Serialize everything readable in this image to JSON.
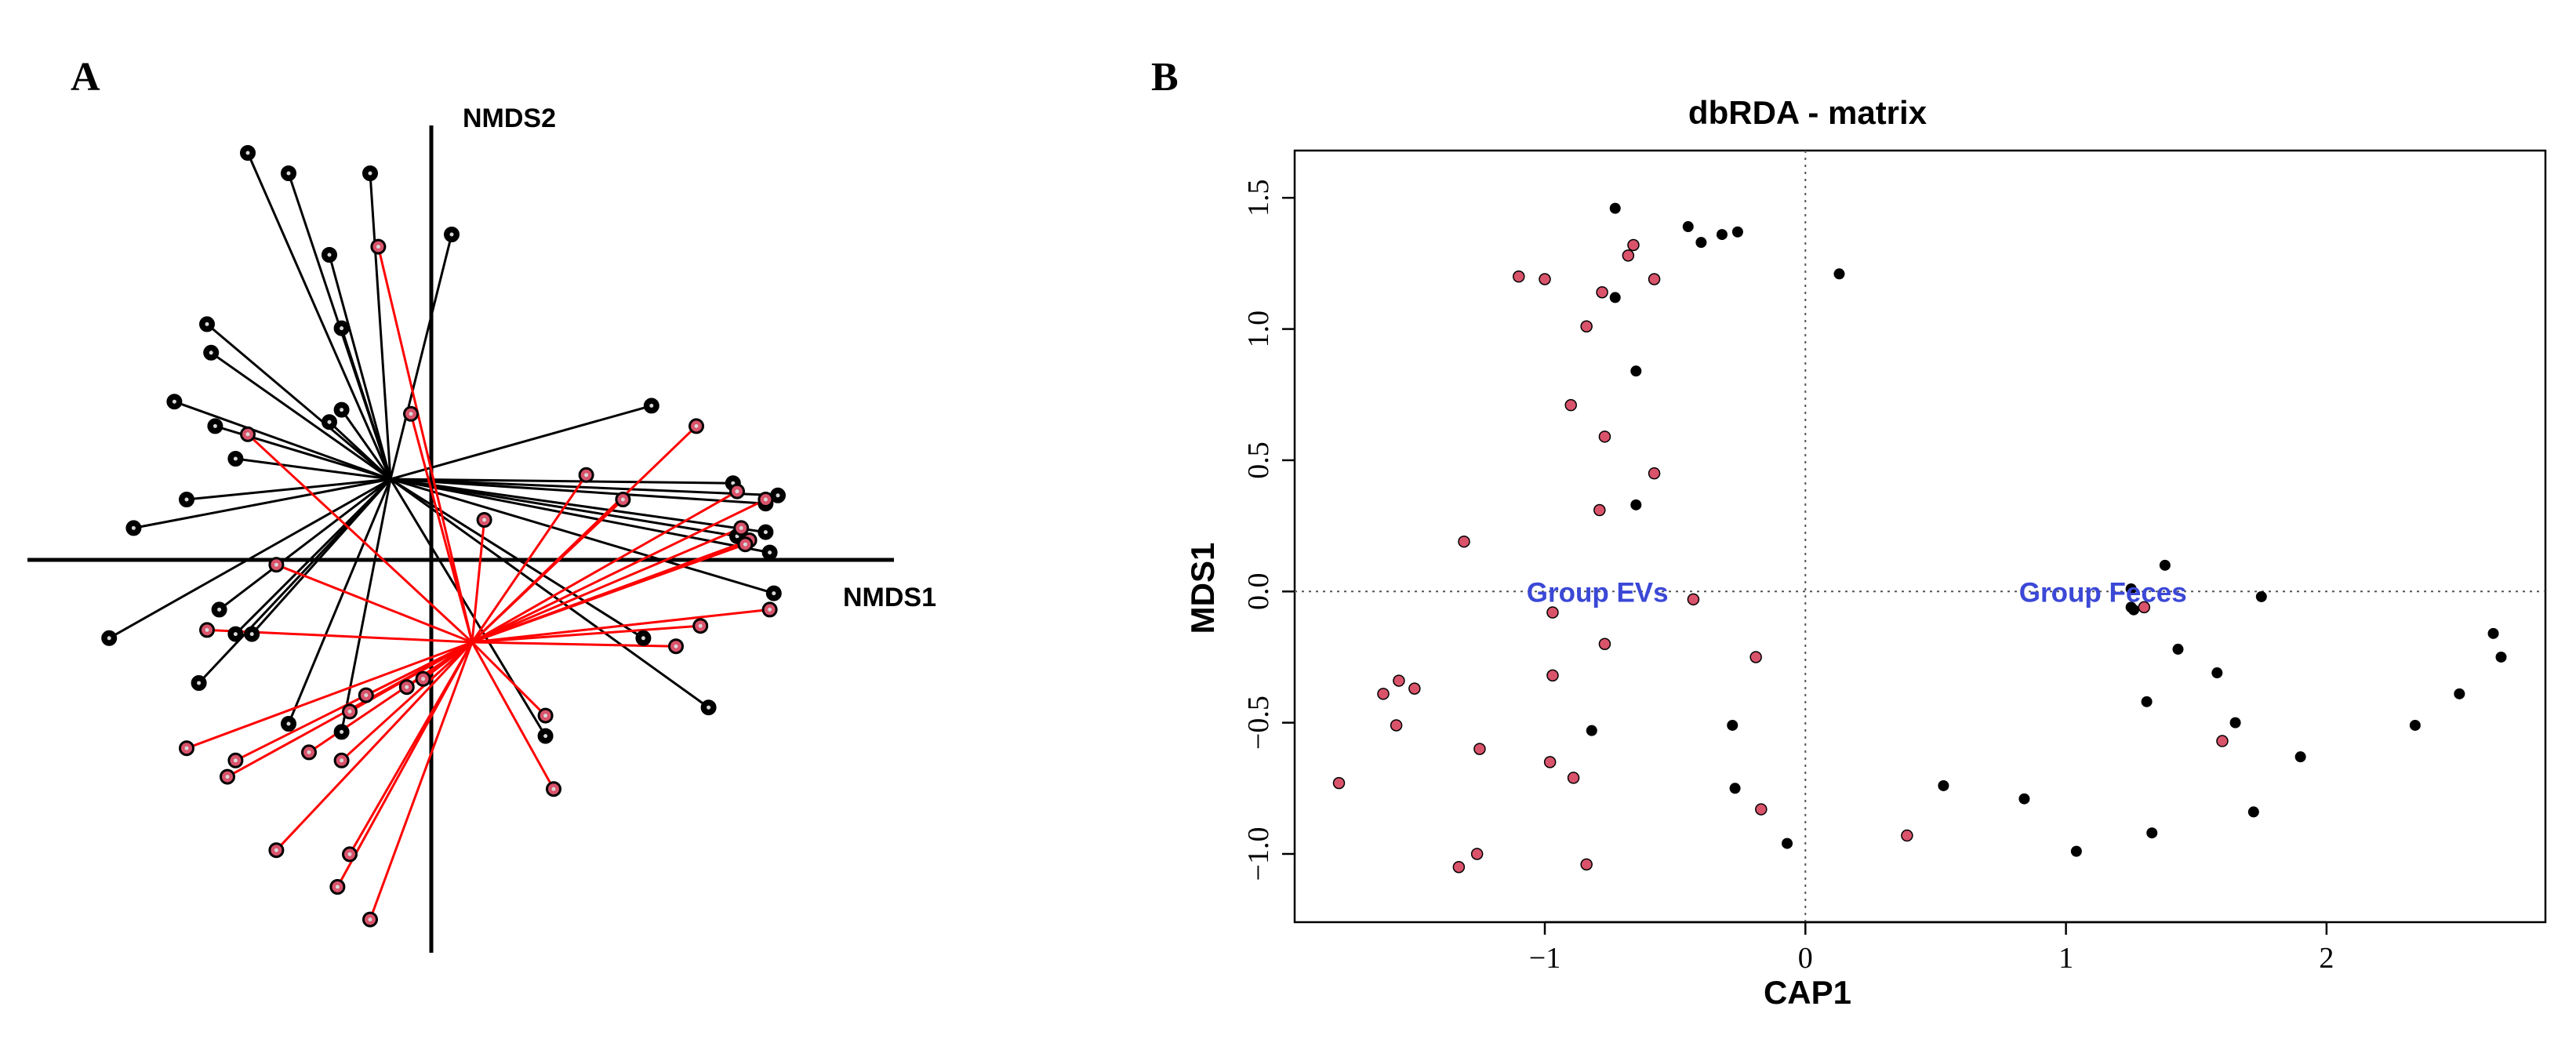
{
  "colors": {
    "black_group": "#000000",
    "red_group": "#d9536b",
    "red_line": "#ff0000",
    "group_label": "#3b48d6"
  },
  "chart_data": [
    {
      "panel_label": "A",
      "type": "scatter",
      "title": "",
      "xlabel": "NMDS1",
      "ylabel": "NMDS2",
      "xlim": [
        -1.0,
        1.0
      ],
      "ylim": [
        -1.0,
        1.0
      ],
      "grid": false,
      "centroids": {
        "black": [
          -0.1,
          0.2
        ],
        "red": [
          0.1,
          -0.2
        ]
      },
      "series": [
        {
          "name": "black",
          "points": [
            [
              -0.45,
              1.0
            ],
            [
              -0.35,
              0.95
            ],
            [
              -0.15,
              0.95
            ],
            [
              0.05,
              0.8
            ],
            [
              -0.25,
              0.75
            ],
            [
              -0.22,
              0.57
            ],
            [
              -0.55,
              0.58
            ],
            [
              -0.54,
              0.51
            ],
            [
              -0.22,
              0.37
            ],
            [
              -0.63,
              0.39
            ],
            [
              -0.25,
              0.34
            ],
            [
              -0.53,
              0.33
            ],
            [
              -0.48,
              0.25
            ],
            [
              -0.6,
              0.15
            ],
            [
              -0.73,
              0.08
            ],
            [
              0.54,
              0.38
            ],
            [
              0.74,
              0.19
            ],
            [
              0.82,
              0.14
            ],
            [
              0.85,
              0.16
            ],
            [
              0.82,
              0.07
            ],
            [
              0.83,
              0.02
            ],
            [
              0.84,
              -0.08
            ],
            [
              0.75,
              0.06
            ],
            [
              -0.52,
              -0.12
            ],
            [
              -0.48,
              -0.18
            ],
            [
              -0.44,
              -0.18
            ],
            [
              -0.79,
              -0.19
            ],
            [
              -0.57,
              -0.3
            ],
            [
              -0.35,
              -0.4
            ],
            [
              -0.22,
              -0.42
            ],
            [
              0.28,
              -0.43
            ],
            [
              0.52,
              -0.19
            ],
            [
              0.68,
              -0.36
            ]
          ]
        },
        {
          "name": "red",
          "points": [
            [
              -0.13,
              0.77
            ],
            [
              -0.05,
              0.36
            ],
            [
              -0.45,
              0.31
            ],
            [
              0.13,
              0.1
            ],
            [
              0.38,
              0.21
            ],
            [
              0.47,
              0.15
            ],
            [
              0.65,
              0.33
            ],
            [
              0.75,
              0.17
            ],
            [
              0.76,
              0.08
            ],
            [
              0.78,
              0.05
            ],
            [
              0.77,
              0.04
            ],
            [
              0.82,
              0.15
            ],
            [
              0.83,
              -0.12
            ],
            [
              0.66,
              -0.16
            ],
            [
              0.6,
              -0.21
            ],
            [
              -0.38,
              -0.01
            ],
            [
              -0.55,
              -0.17
            ],
            [
              -0.6,
              -0.46
            ],
            [
              -0.48,
              -0.49
            ],
            [
              -0.5,
              -0.53
            ],
            [
              -0.3,
              -0.47
            ],
            [
              -0.22,
              -0.49
            ],
            [
              -0.2,
              -0.37
            ],
            [
              -0.16,
              -0.33
            ],
            [
              -0.06,
              -0.31
            ],
            [
              -0.02,
              -0.29
            ],
            [
              0.28,
              -0.38
            ],
            [
              0.3,
              -0.56
            ],
            [
              -0.38,
              -0.71
            ],
            [
              -0.2,
              -0.72
            ],
            [
              -0.23,
              -0.8
            ],
            [
              -0.15,
              -0.88
            ]
          ]
        }
      ]
    },
    {
      "panel_label": "B",
      "type": "scatter",
      "title": "dbRDA - matrix",
      "xlabel": "CAP1",
      "ylabel": "MDS1",
      "xlim": [
        -1.96,
        2.84
      ],
      "ylim": [
        -1.26,
        1.68
      ],
      "x_ticks": [
        -1,
        0,
        1,
        2
      ],
      "y_ticks": [
        -1.0,
        -0.5,
        0.0,
        0.5,
        1.0,
        1.5
      ],
      "tick_labels_x": [
        "−1",
        "0",
        "1",
        "2"
      ],
      "tick_labels_y": [
        "−1.0",
        "−0.5",
        "0.0",
        "0.5",
        "1.0",
        "1.5"
      ],
      "grid": false,
      "reference_lines": {
        "x": 0,
        "y": 0
      },
      "annotations": [
        {
          "text": "Group EVs",
          "x": -1.07,
          "y": 0.0
        },
        {
          "text": "Group Feces",
          "x": 0.82,
          "y": 0.0
        }
      ],
      "series": [
        {
          "name": "black",
          "points": [
            [
              -0.73,
              1.46
            ],
            [
              -0.45,
              1.39
            ],
            [
              -0.4,
              1.33
            ],
            [
              -0.32,
              1.36
            ],
            [
              -0.26,
              1.37
            ],
            [
              0.13,
              1.21
            ],
            [
              -0.73,
              1.12
            ],
            [
              -0.65,
              0.84
            ],
            [
              -0.65,
              0.33
            ],
            [
              -0.82,
              -0.53
            ],
            [
              -0.28,
              -0.51
            ],
            [
              -0.27,
              -0.75
            ],
            [
              -0.07,
              -0.96
            ],
            [
              1.25,
              0.01
            ],
            [
              1.25,
              -0.06
            ],
            [
              1.26,
              -0.07
            ],
            [
              1.38,
              0.1
            ],
            [
              1.75,
              -0.02
            ],
            [
              1.43,
              -0.22
            ],
            [
              1.58,
              -0.31
            ],
            [
              1.31,
              -0.42
            ],
            [
              1.65,
              -0.5
            ],
            [
              1.9,
              -0.63
            ],
            [
              2.34,
              -0.51
            ],
            [
              2.51,
              -0.39
            ],
            [
              2.64,
              -0.16
            ],
            [
              2.67,
              -0.25
            ],
            [
              0.53,
              -0.74
            ],
            [
              0.84,
              -0.79
            ],
            [
              1.04,
              -0.99
            ],
            [
              1.33,
              -0.92
            ],
            [
              1.72,
              -0.84
            ]
          ]
        },
        {
          "name": "red",
          "points": [
            [
              -0.68,
              1.28
            ],
            [
              -0.66,
              1.32
            ],
            [
              -0.58,
              1.19
            ],
            [
              -1.1,
              1.2
            ],
            [
              -1.0,
              1.19
            ],
            [
              -0.78,
              1.14
            ],
            [
              -0.84,
              1.01
            ],
            [
              -0.9,
              0.71
            ],
            [
              -0.77,
              0.59
            ],
            [
              -0.58,
              0.45
            ],
            [
              -0.79,
              0.31
            ],
            [
              -1.31,
              0.19
            ],
            [
              -0.43,
              -0.03
            ],
            [
              -0.97,
              -0.08
            ],
            [
              -0.77,
              -0.2
            ],
            [
              -0.19,
              -0.25
            ],
            [
              -0.97,
              -0.32
            ],
            [
              -1.56,
              -0.34
            ],
            [
              -1.5,
              -0.37
            ],
            [
              -1.62,
              -0.39
            ],
            [
              -1.57,
              -0.51
            ],
            [
              -1.25,
              -0.6
            ],
            [
              -0.98,
              -0.65
            ],
            [
              -0.89,
              -0.71
            ],
            [
              -1.79,
              -0.73
            ],
            [
              -0.17,
              -0.83
            ],
            [
              0.39,
              -0.93
            ],
            [
              -1.26,
              -1.0
            ],
            [
              -1.33,
              -1.05
            ],
            [
              -0.84,
              -1.04
            ],
            [
              1.3,
              -0.06
            ],
            [
              1.6,
              -0.57
            ]
          ]
        }
      ]
    }
  ]
}
